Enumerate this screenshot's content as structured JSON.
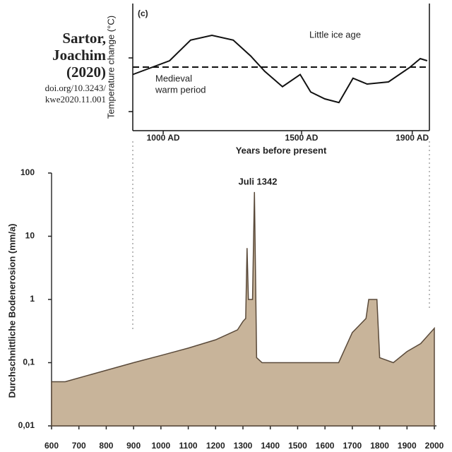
{
  "attribution": [
    "Sartor,",
    "Joachim",
    "(2020)",
    "doi.org/10.3243/",
    "kwe2020.11.001"
  ],
  "chart_data": [
    {
      "type": "line",
      "title": "(c)",
      "y_label": "Temperature change (°C)",
      "x_label": "Years before present",
      "annotations": [
        "Little ice age",
        "Medieval",
        "warm period"
      ],
      "x": [
        890,
        1023,
        1099,
        1176,
        1253,
        1316,
        1367,
        1431,
        1495,
        1533,
        1584,
        1635,
        1686,
        1737,
        1814,
        1890,
        1929,
        1954
      ],
      "values": [
        -0.14,
        0.12,
        0.51,
        0.6,
        0.51,
        0.21,
        -0.08,
        -0.37,
        -0.14,
        -0.47,
        -0.6,
        -0.67,
        -0.21,
        -0.32,
        -0.28,
        -0.01,
        0.16,
        0.12
      ],
      "color": "#111111",
      "reference_line": 0,
      "xlim": [
        890,
        1962
      ],
      "xticks": [
        {
          "value": 1000,
          "label": "1000 AD"
        },
        {
          "value": 1500,
          "label": "1500 AD"
        },
        {
          "value": 1900,
          "label": "1900 AD"
        }
      ],
      "ylim": [
        -1.2,
        1.2
      ]
    },
    {
      "type": "area",
      "y_label": "Durchschnittliche Bodenerosion (mm/a)",
      "annotations": [
        "Juli 1342"
      ],
      "x": [
        600,
        650,
        900,
        1000,
        1100,
        1200,
        1280,
        1300,
        1310,
        1315,
        1320,
        1335,
        1342,
        1350,
        1370,
        1400,
        1650,
        1700,
        1750,
        1760,
        1790,
        1800,
        1850,
        1900,
        1950,
        2000
      ],
      "values": [
        0.05,
        0.05,
        0.1,
        0.13,
        0.17,
        0.23,
        0.33,
        0.45,
        0.5,
        6.5,
        1,
        1,
        50,
        0.12,
        0.1,
        0.1,
        0.1,
        0.3,
        0.5,
        1,
        1,
        0.12,
        0.1,
        0.15,
        0.2,
        0.35
      ],
      "color": "#c8b49a",
      "log_y": true,
      "xlim": [
        600,
        2000
      ],
      "xticks": [
        600,
        700,
        800,
        900,
        1000,
        1100,
        1200,
        1300,
        1400,
        1500,
        1600,
        1700,
        1800,
        1900,
        2000
      ],
      "ylim": [
        0.01,
        100
      ],
      "yticks": [
        {
          "value": 0.01,
          "label": "0,01"
        },
        {
          "value": 0.1,
          "label": "0,1"
        },
        1,
        10,
        100
      ]
    }
  ]
}
